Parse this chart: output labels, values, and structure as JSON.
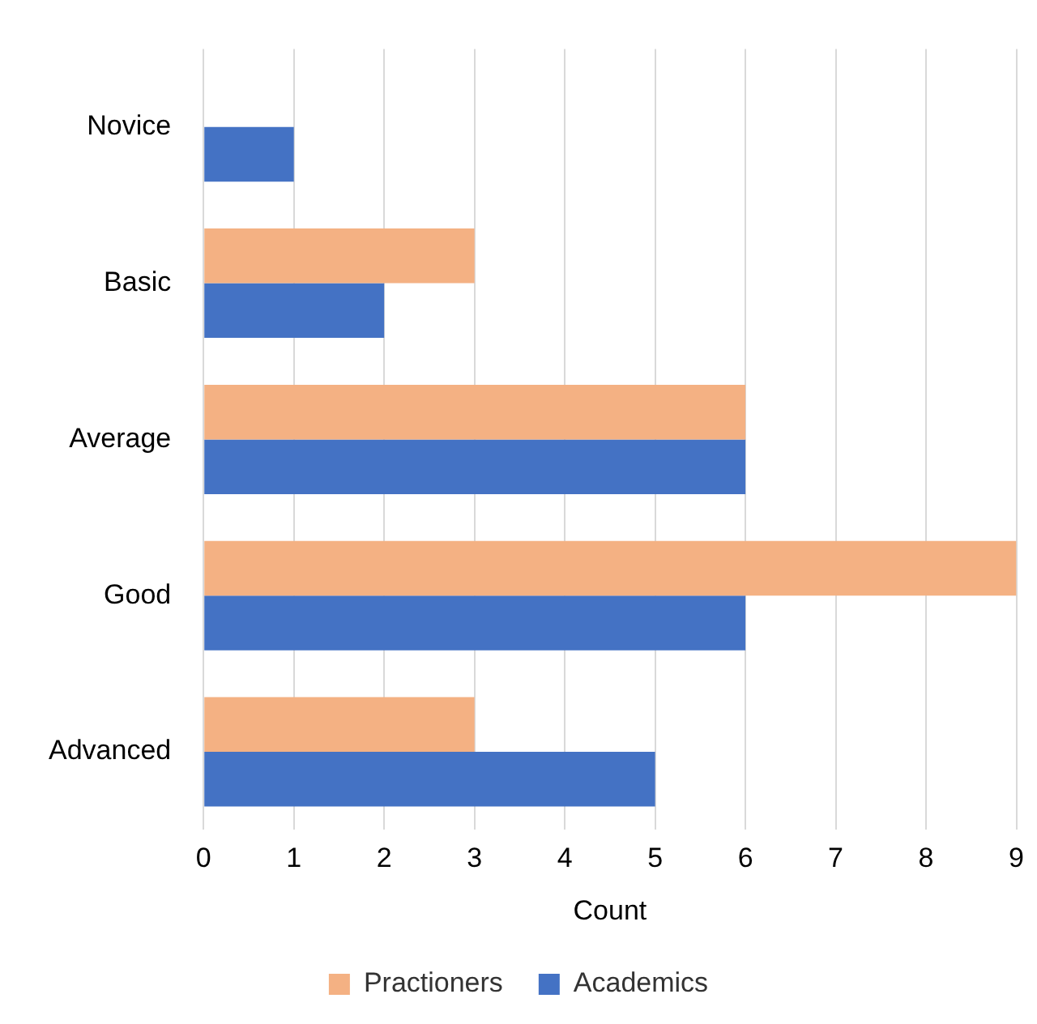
{
  "chart_data": {
    "type": "bar",
    "orientation": "horizontal",
    "xlabel": "Count",
    "categories": [
      "Novice",
      "Basic",
      "Average",
      "Good",
      "Advanced"
    ],
    "series": [
      {
        "name": "Practioners",
        "color": "#f4b183",
        "values": [
          0,
          3,
          6,
          9,
          3
        ]
      },
      {
        "name": "Academics",
        "color": "#4472c4",
        "values": [
          1,
          2,
          6,
          6,
          5
        ]
      }
    ],
    "xlim": [
      0,
      9
    ],
    "xticks": [
      0,
      1,
      2,
      3,
      4,
      5,
      6,
      7,
      8,
      9
    ],
    "grid": "x",
    "legend": "bottom"
  }
}
